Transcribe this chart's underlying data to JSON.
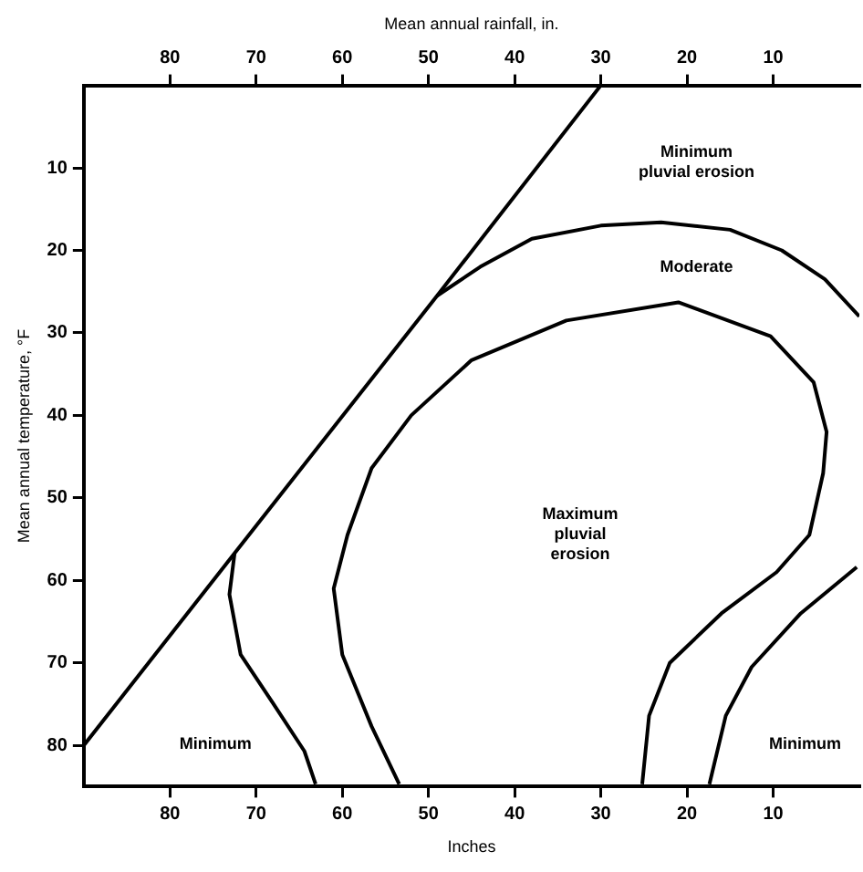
{
  "chart_data": {
    "type": "line",
    "xlabel": "Inches",
    "x2label": "Mean annual rainfall, in.",
    "ylabel": "Mean annual temperature, °F",
    "xlim": [
      90,
      0
    ],
    "xticks": [
      80,
      70,
      60,
      50,
      40,
      30,
      20,
      10
    ],
    "x2lim": [
      90,
      0
    ],
    "x2ticks": [
      80,
      70,
      60,
      50,
      40,
      30,
      20,
      10
    ],
    "ylim": [
      85,
      0
    ],
    "yticks": [
      10,
      20,
      30,
      40,
      50,
      60,
      70,
      80
    ],
    "marker": "none",
    "line_style": "solid",
    "series": [
      {
        "type": "line",
        "color": "#000000",
        "x": [
          30,
          49,
          72.5,
          90
        ],
        "values": [
          0,
          25.5,
          56.7,
          80
        ]
      },
      {
        "type": "line",
        "color": "#000000",
        "x": [
          49,
          44,
          38,
          30,
          23,
          15,
          9,
          4,
          0
        ],
        "values": [
          25.5,
          22,
          18.6,
          17,
          16.6,
          17.5,
          20,
          23.5,
          28
        ]
      },
      {
        "type": "line",
        "color": "#000000",
        "x": [
          53.4,
          56.6,
          60,
          61,
          59.4,
          56.6,
          52,
          45,
          34,
          21,
          10.3,
          5.3,
          3.8,
          4.2,
          5.8,
          9.6,
          16,
          22,
          24.4,
          25.2
        ],
        "values": [
          84.7,
          77.7,
          69,
          61,
          54.5,
          46.4,
          40,
          33.3,
          28.5,
          26.3,
          30.4,
          36,
          42,
          47,
          54.5,
          59,
          64,
          70,
          76.4,
          84.7
        ]
      },
      {
        "type": "line",
        "color": "#000000",
        "x": [
          72.5,
          73.1,
          71.8,
          68.1,
          64.4,
          63.1
        ],
        "values": [
          56.7,
          61.7,
          69,
          74.8,
          80.7,
          84.7
        ]
      },
      {
        "type": "line",
        "color": "#000000",
        "x": [
          0.3,
          6.8,
          12.5,
          15.5,
          17.4
        ],
        "values": [
          58.4,
          64,
          70.5,
          76.4,
          84.7
        ]
      }
    ],
    "annotations": [
      "Minimum\npluvial erosion",
      "Moderate",
      "Maximum\npluvial\nerosion",
      "Minimum",
      "Minimum"
    ]
  }
}
